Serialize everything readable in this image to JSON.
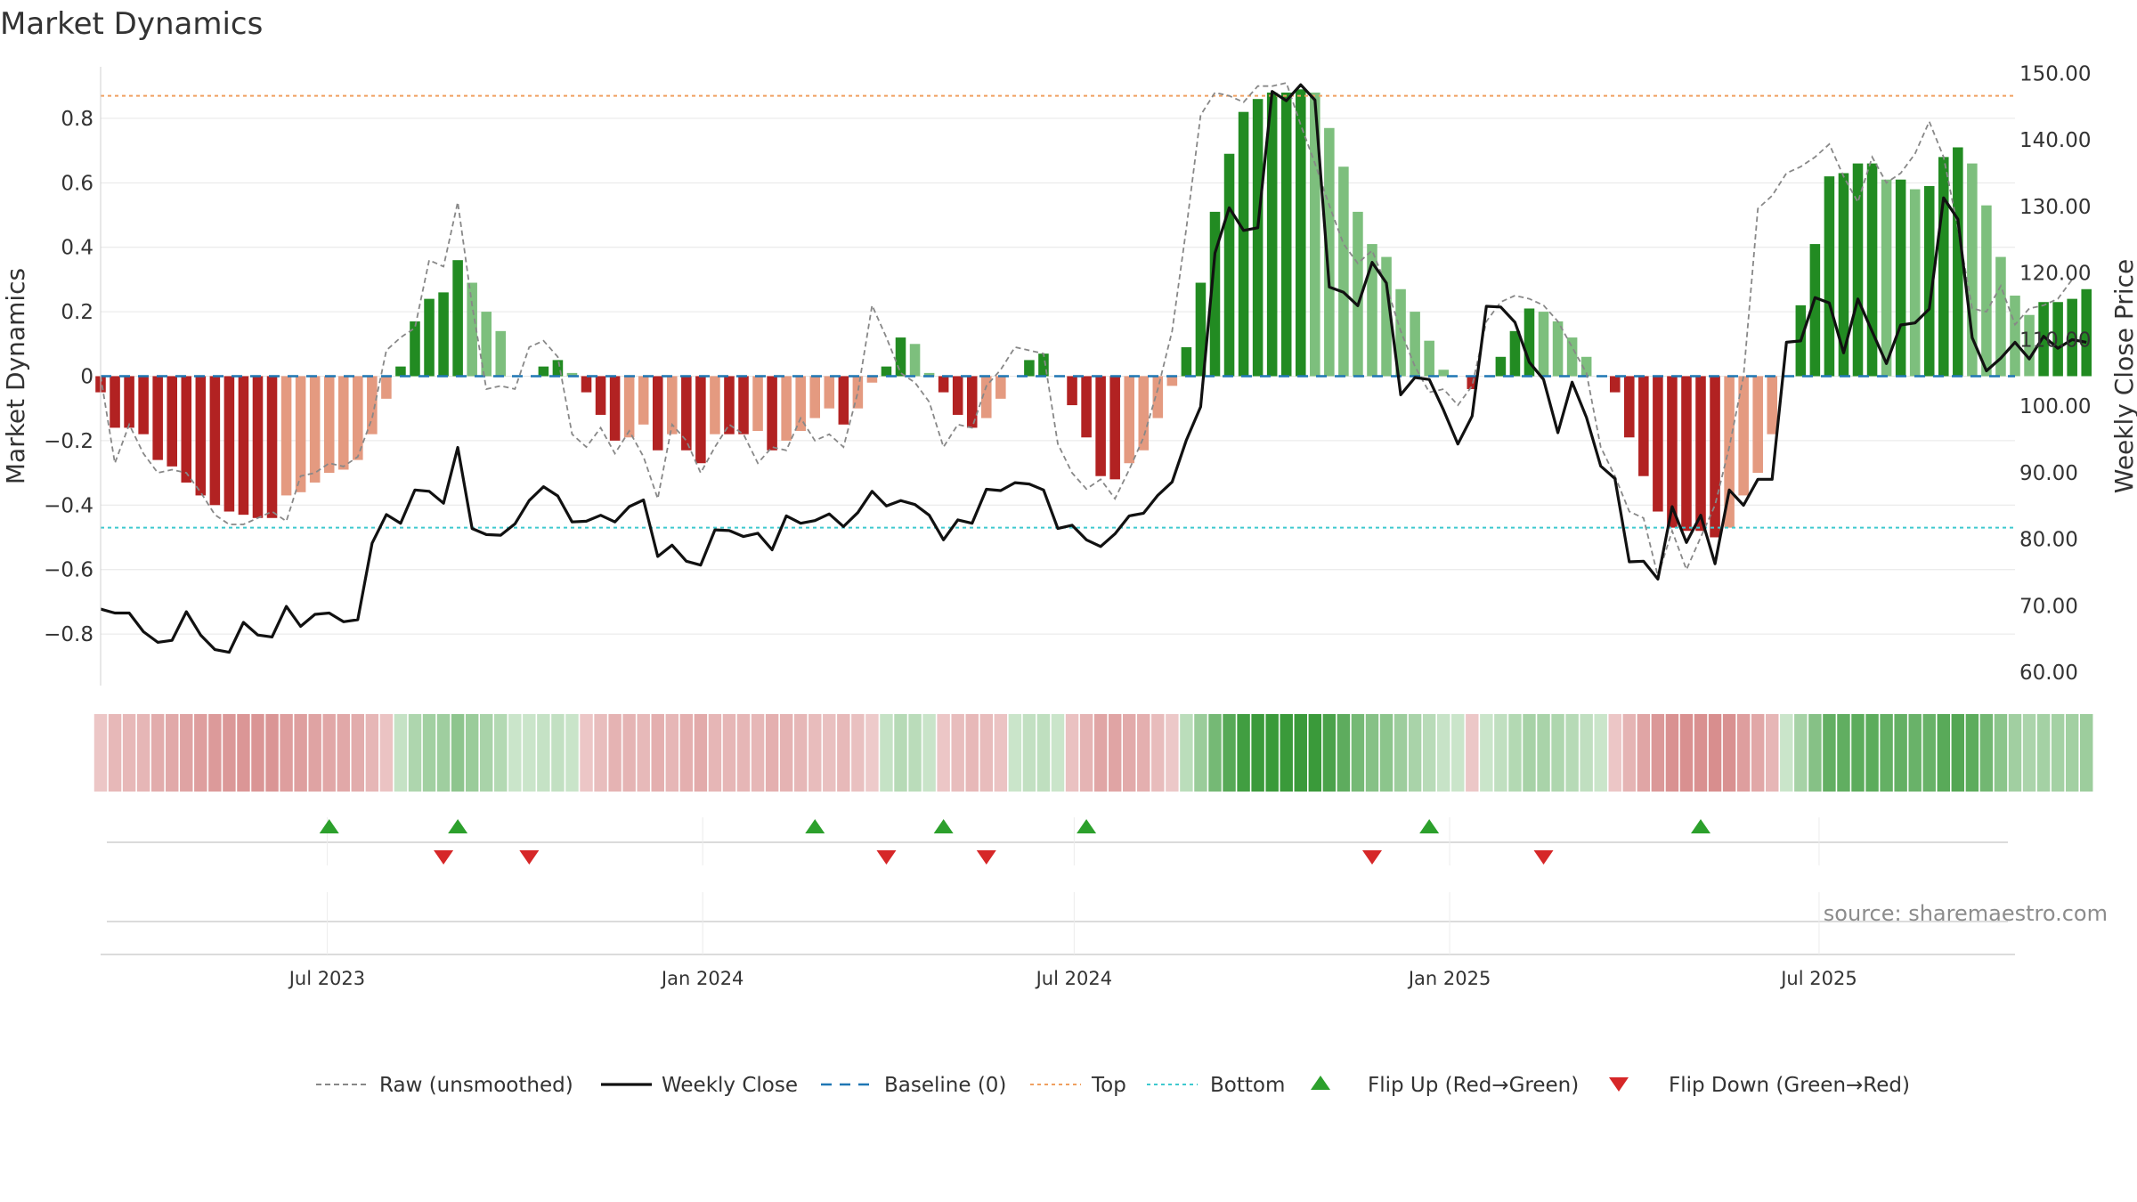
{
  "chart_data": {
    "title": "Market Dynamics",
    "ylabel_left": "Market Dynamics",
    "ylabel_right": "Weekly Close Price",
    "source": "source: sharemaestro.com",
    "ylim_left": [
      -0.96,
      0.96
    ],
    "ylim_right": [
      58,
      151
    ],
    "yticks_left": [
      0.8,
      0.6,
      0.4,
      0.2,
      0,
      -0.2,
      -0.4,
      -0.6,
      -0.8
    ],
    "yticks_left_labels": [
      "0.8",
      "0.6",
      "0.4",
      "0.2",
      "0",
      "−0.2",
      "−0.4",
      "−0.6",
      "−0.8"
    ],
    "yticks_right": [
      150,
      140,
      130,
      120,
      110,
      100,
      90,
      80,
      70,
      60
    ],
    "yticks_right_labels": [
      "150.00",
      "140.00",
      "130.00",
      "120.00",
      "110.00",
      "100.00",
      "90.00",
      "80.00",
      "70.00",
      "60.00"
    ],
    "x_start": "2023-03-12",
    "x_end": "2025-10-05",
    "date_ticks": [
      "2023-07-01",
      "2024-01-01",
      "2024-07-01",
      "2025-01-01",
      "2025-07-01"
    ],
    "date_tick_labels": [
      "Jul 2023",
      "Jan 2024",
      "Jul 2024",
      "Jan 2025",
      "Jul 2025"
    ],
    "top_level": 0.87,
    "bottom_level": -0.47,
    "baseline": 0,
    "series": [
      {
        "name": "Market Dynamics (smoothed)",
        "start": "2023-03-12",
        "freq": "weekly",
        "values": [
          -0.05,
          -0.16,
          -0.16,
          -0.18,
          -0.26,
          -0.28,
          -0.33,
          -0.37,
          -0.4,
          -0.42,
          -0.43,
          -0.44,
          -0.44,
          -0.37,
          -0.36,
          -0.33,
          -0.3,
          -0.29,
          -0.26,
          -0.18,
          -0.07,
          0.03,
          0.17,
          0.24,
          0.26,
          0.36,
          0.29,
          0.2,
          0.14,
          0.0,
          0.0,
          0.03,
          0.05,
          0.01,
          -0.05,
          -0.12,
          -0.2,
          -0.19,
          -0.15,
          -0.23,
          -0.18,
          -0.23,
          -0.27,
          -0.18,
          -0.18,
          -0.18,
          -0.17,
          -0.23,
          -0.2,
          -0.17,
          -0.13,
          -0.1,
          -0.15,
          -0.1,
          -0.02,
          0.03,
          0.12,
          0.1,
          0.01,
          -0.05,
          -0.12,
          -0.16,
          -0.13,
          -0.07,
          0.0,
          0.05,
          0.07,
          0.0,
          -0.09,
          -0.19,
          -0.31,
          -0.32,
          -0.27,
          -0.23,
          -0.13,
          -0.03,
          0.09,
          0.29,
          0.51,
          0.69,
          0.82,
          0.86,
          0.88,
          0.88,
          0.89,
          0.88,
          0.77,
          0.65,
          0.51,
          0.41,
          0.37,
          0.27,
          0.2,
          0.11,
          0.02,
          0.0,
          -0.04,
          0.0,
          0.06,
          0.14,
          0.21,
          0.2,
          0.17,
          0.12,
          0.06,
          0.0,
          -0.05,
          -0.19,
          -0.31,
          -0.42,
          -0.47,
          -0.48,
          -0.48,
          -0.5,
          -0.47,
          -0.37,
          -0.3,
          -0.18,
          0.0,
          0.22,
          0.41,
          0.62,
          0.63,
          0.66,
          0.66,
          0.61,
          0.61,
          0.58,
          0.59,
          0.68,
          0.71,
          0.66,
          0.53,
          0.37,
          0.25,
          0.19,
          0.23,
          0.23,
          0.24,
          0.27
        ]
      },
      {
        "name": "Raw (unsmoothed)",
        "start": "2023-03-12",
        "freq": "weekly",
        "values": [
          0.0,
          -0.27,
          -0.15,
          -0.24,
          -0.3,
          -0.29,
          -0.3,
          -0.36,
          -0.43,
          -0.46,
          -0.46,
          -0.44,
          -0.42,
          -0.45,
          -0.31,
          -0.3,
          -0.27,
          -0.28,
          -0.25,
          -0.13,
          0.08,
          0.12,
          0.15,
          0.36,
          0.34,
          0.54,
          0.22,
          -0.04,
          -0.03,
          -0.04,
          0.09,
          0.11,
          0.06,
          -0.18,
          -0.22,
          -0.16,
          -0.24,
          -0.17,
          -0.25,
          -0.38,
          -0.15,
          -0.2,
          -0.3,
          -0.22,
          -0.15,
          -0.18,
          -0.27,
          -0.22,
          -0.23,
          -0.13,
          -0.2,
          -0.18,
          -0.22,
          -0.05,
          0.22,
          0.12,
          0.01,
          -0.02,
          -0.08,
          -0.22,
          -0.15,
          -0.16,
          -0.03,
          0.02,
          0.09,
          0.08,
          0.07,
          -0.21,
          -0.3,
          -0.35,
          -0.32,
          -0.38,
          -0.29,
          -0.19,
          -0.04,
          0.14,
          0.46,
          0.81,
          0.88,
          0.87,
          0.85,
          0.9,
          0.9,
          0.91,
          0.78,
          0.66,
          0.53,
          0.41,
          0.35,
          0.39,
          0.28,
          0.14,
          0.03,
          -0.05,
          -0.04,
          -0.09,
          -0.03,
          0.17,
          0.23,
          0.25,
          0.24,
          0.22,
          0.17,
          0.09,
          0.01,
          -0.22,
          -0.31,
          -0.42,
          -0.44,
          -0.62,
          -0.48,
          -0.6,
          -0.5,
          -0.4,
          -0.22,
          0.0,
          0.52,
          0.56,
          0.63,
          0.65,
          0.68,
          0.72,
          0.62,
          0.54,
          0.68,
          0.6,
          0.63,
          0.69,
          0.79,
          0.68,
          0.46,
          0.21,
          0.2,
          0.28,
          0.16,
          0.21,
          0.22,
          0.24,
          0.3
        ]
      },
      {
        "name": "Weekly Close",
        "axis": "right",
        "start": "2023-03-12",
        "freq": "weekly",
        "values": [
          69.5,
          68.9,
          68.9,
          66.1,
          64.5,
          64.8,
          69.1,
          65.6,
          63.4,
          63.0,
          67.5,
          65.6,
          65.3,
          69.9,
          66.9,
          68.7,
          68.9,
          67.6,
          67.9,
          79.4,
          83.7,
          82.4,
          87.4,
          87.2,
          85.4,
          93.8,
          81.6,
          80.7,
          80.6,
          82.3,
          85.8,
          87.9,
          86.5,
          82.6,
          82.7,
          83.6,
          82.6,
          84.9,
          85.9,
          77.4,
          79.1,
          76.7,
          76.1,
          81.4,
          81.3,
          80.4,
          80.9,
          78.4,
          83.5,
          82.4,
          82.8,
          83.8,
          81.9,
          84.0,
          87.2,
          85.0,
          85.8,
          85.2,
          83.6,
          79.9,
          82.9,
          82.4,
          87.5,
          87.3,
          88.5,
          88.3,
          87.4,
          81.6,
          82.1,
          79.9,
          78.9,
          80.8,
          83.5,
          83.9,
          86.6,
          88.6,
          94.9,
          99.9,
          123.0,
          129.8,
          126.4,
          126.8,
          147.3,
          145.9,
          148.3,
          146.0,
          117.9,
          117.1,
          115.1,
          121.6,
          118.5,
          101.7,
          104.3,
          104.0,
          99.4,
          94.3,
          98.5,
          115.0,
          114.9,
          112.6,
          106.6,
          104.0,
          96.0,
          103.6,
          98.3,
          91.0,
          89.1,
          76.6,
          76.7,
          74.0,
          84.9,
          79.5,
          83.6,
          76.3,
          87.4,
          85.1,
          89.0,
          89.0,
          109.6,
          109.8,
          116.3,
          115.5,
          108.0,
          116.1,
          111.2,
          106.4,
          112.2,
          112.5,
          114.6,
          131.3,
          128.1,
          110.3,
          105.3,
          107.2,
          109.6,
          107.1,
          110.5,
          108.7,
          110.0,
          109.6
        ]
      }
    ],
    "bar_colors": {
      "up": "#228b22",
      "up_fading": "#7dbf7d",
      "down": "#b22222",
      "down_fading": "#e49a80"
    },
    "regime_strip": {
      "type": "heatmap",
      "same_dates_as_series": true
    },
    "flip_up_dates": [
      "2023-07-02",
      "2023-09-03",
      "2024-02-25",
      "2024-04-28",
      "2024-07-07",
      "2024-12-22",
      "2025-05-04"
    ],
    "flip_down_dates": [
      "2023-08-27",
      "2023-10-08",
      "2024-03-31",
      "2024-05-19",
      "2024-11-24",
      "2025-02-16"
    ],
    "legend": {
      "placement": "bottom-center",
      "items": [
        {
          "label": "Raw (unsmoothed)",
          "style": "dashed-gray"
        },
        {
          "label": "Weekly Close",
          "style": "solid-black"
        },
        {
          "label": "Baseline (0)",
          "style": "dashed-blue"
        },
        {
          "label": "Top",
          "style": "dotted-orange"
        },
        {
          "label": "Bottom",
          "style": "dotted-cyan"
        },
        {
          "label": "Flip Up (Red→Green)",
          "style": "triangle-up-green"
        },
        {
          "label": "Flip Down (Green→Red)",
          "style": "triangle-down-red"
        }
      ]
    },
    "colors": {
      "raw": "#888888",
      "close": "#111111",
      "baseline": "#1f77b4",
      "top": "#f0a060",
      "bottom": "#3ec9cf",
      "flip_up": "#2ca02c",
      "flip_down": "#d62728",
      "grid": "#e6e6e6"
    }
  }
}
